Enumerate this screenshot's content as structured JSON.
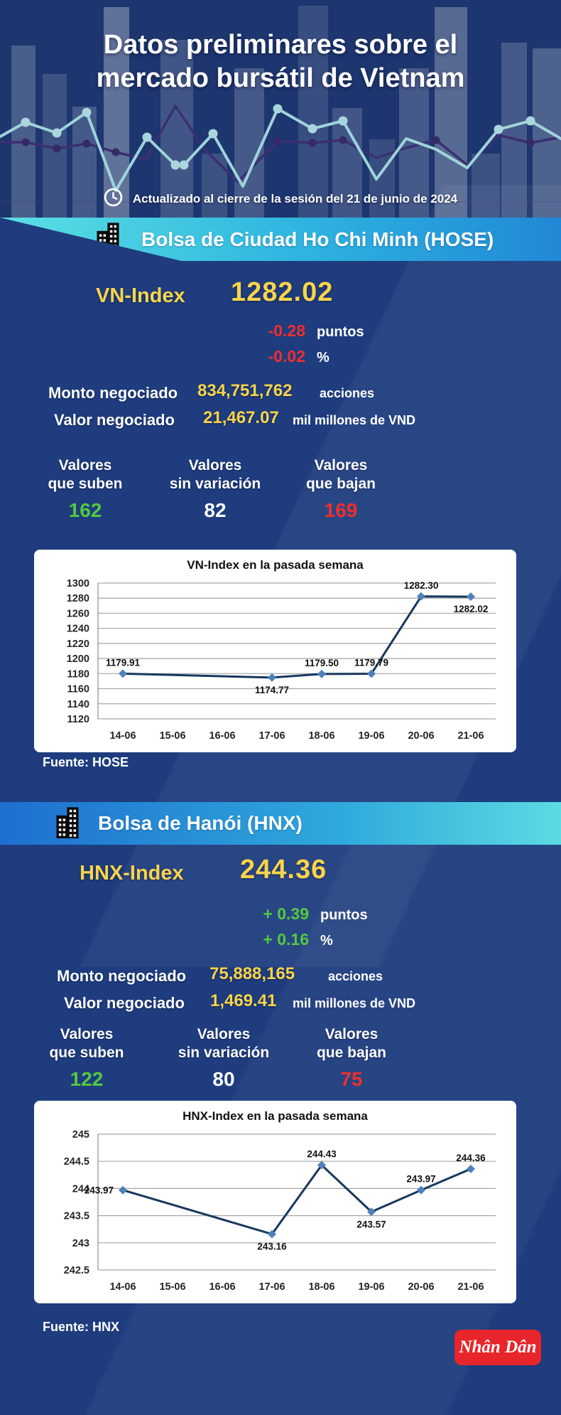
{
  "header": {
    "title_line1": "Datos preliminares sobre el",
    "title_line2": "mercado bursátil de Vietnam",
    "updated": "Actualizado al cierre de la sesión del 21 de junio de 2024"
  },
  "hose": {
    "banner": "Bolsa de Ciudad Ho Chi Minh (HOSE)",
    "index_label": "VN-Index",
    "index_value": "1282.02",
    "change_points": "-0.28",
    "change_points_unit": "puntos",
    "change_pct": "-0.02",
    "change_pct_unit": "%",
    "volume_label": "Monto negociado",
    "volume_value": "834,751,762",
    "volume_unit": "acciones",
    "value_label": "Valor negociado",
    "value_value": "21,467.07",
    "value_unit": "mil millones de VND",
    "breadth": [
      {
        "label1": "Valores",
        "label2": "que suben",
        "value": "162",
        "color": "#52c93f"
      },
      {
        "label1": "Valores",
        "label2": "sin variación",
        "value": "82",
        "color": "#ffffff"
      },
      {
        "label1": "Valores",
        "label2": "que bajan",
        "value": "169",
        "color": "#ef2f2b"
      }
    ],
    "source": "Fuente: HOSE"
  },
  "hnx": {
    "banner": "Bolsa de Hanói (HNX)",
    "index_label": "HNX-Index",
    "index_value": "244.36",
    "change_points": "+ 0.39",
    "change_points_unit": "puntos",
    "change_pct": "+ 0.16",
    "change_pct_unit": "%",
    "volume_label": "Monto negociado",
    "volume_value": "75,888,165",
    "volume_unit": "acciones",
    "value_label": "Valor negociado",
    "value_value": "1,469.41",
    "value_unit": "mil millones de VND",
    "breadth": [
      {
        "label1": "Valores",
        "label2": "que suben",
        "value": "122",
        "color": "#52c93f"
      },
      {
        "label1": "Valores",
        "label2": "sin variación",
        "value": "80",
        "color": "#ffffff"
      },
      {
        "label1": "Valores",
        "label2": "que bajan",
        "value": "75",
        "color": "#ef2f2b"
      }
    ],
    "source": "Fuente:  HNX"
  },
  "footer": {
    "brand": "Nhân Dân"
  },
  "colors": {
    "background": "#1e3c7e",
    "accent_yellow": "#f7d44a",
    "negative_red": "#ef2f2b",
    "positive_green": "#52c93f",
    "banner_hose_gradient": [
      "#5ae1e3",
      "#1b78d3"
    ],
    "banner_hnx_gradient": [
      "#1e6fd0",
      "#68e6e4"
    ],
    "chart_line": "#17375e",
    "chart_marker": "#4f81bd",
    "logo_red": "#e8252a"
  },
  "chart_data": [
    {
      "type": "line",
      "title": "VN-Index en la pasada semana",
      "categories": [
        "14-06",
        "15-06",
        "16-06",
        "17-06",
        "18-06",
        "19-06",
        "20-06",
        "21-06"
      ],
      "ytick_labels": [
        "1300",
        "1280",
        "1260",
        "1240",
        "1220",
        "1200",
        "1180",
        "1160",
        "1140",
        "1120"
      ],
      "ylim": [
        1120,
        1300
      ],
      "grid": true,
      "legend": false,
      "line_color": "#17375e",
      "marker_color": "#4f81bd",
      "series": [
        {
          "name": "VN-Index",
          "points": [
            {
              "x": "14-06",
              "y": 1179.91,
              "label": "1179.91",
              "label_pos": "above"
            },
            {
              "x": "17-06",
              "y": 1174.77,
              "label": "1174.77",
              "label_pos": "below"
            },
            {
              "x": "18-06",
              "y": 1179.5,
              "label": "1179.50",
              "label_pos": "above"
            },
            {
              "x": "19-06",
              "y": 1179.79,
              "label": "1179.79",
              "label_pos": "above"
            },
            {
              "x": "20-06",
              "y": 1282.3,
              "label": "1282.30",
              "label_pos": "above"
            },
            {
              "x": "21-06",
              "y": 1282.02,
              "label": "1282.02",
              "label_pos": "below"
            }
          ]
        }
      ]
    },
    {
      "type": "line",
      "title": "HNX-Index en la pasada semana",
      "categories": [
        "14-06",
        "15-06",
        "16-06",
        "17-06",
        "18-06",
        "19-06",
        "20-06",
        "21-06"
      ],
      "ytick_labels": [
        "245",
        "244.5",
        "244",
        "243.5",
        "243",
        "242.5"
      ],
      "ylim": [
        242.5,
        245
      ],
      "grid": true,
      "legend": false,
      "line_color": "#17375e",
      "marker_color": "#4f81bd",
      "series": [
        {
          "name": "HNX-Index",
          "points": [
            {
              "x": "14-06",
              "y": 243.97,
              "label": "243.97",
              "label_pos": "left"
            },
            {
              "x": "17-06",
              "y": 243.16,
              "label": "243.16",
              "label_pos": "below"
            },
            {
              "x": "18-06",
              "y": 244.43,
              "label": "244.43",
              "label_pos": "above"
            },
            {
              "x": "19-06",
              "y": 243.57,
              "label": "243.57",
              "label_pos": "below"
            },
            {
              "x": "20-06",
              "y": 243.97,
              "label": "243.97",
              "label_pos": "above"
            },
            {
              "x": "21-06",
              "y": 244.36,
              "label": "244.36",
              "label_pos": "above"
            }
          ]
        }
      ]
    }
  ]
}
